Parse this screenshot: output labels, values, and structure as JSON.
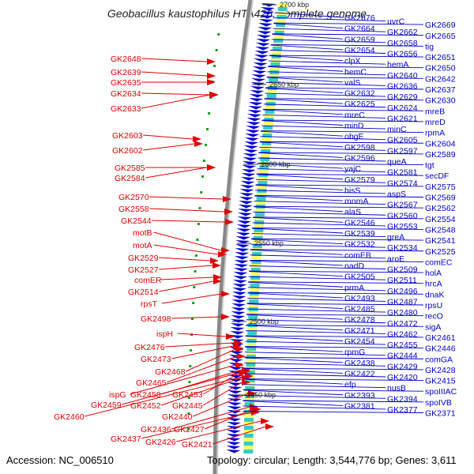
{
  "title": "Geobacillus kaustophilus HTA426, complete genome",
  "footer": {
    "accession": "Accession: NC_006510",
    "stats": "Topology: circular; Length: 3,544,776 bp; Genes: 3,611"
  },
  "colors": {
    "plus_strand": "#e00000",
    "minus_strand": "#0000cc",
    "backbone": "#888888",
    "mark": "#1a9e1a"
  },
  "scale_marks": [
    "2700 kbp",
    "2650 kbp",
    "2600 kbp",
    "2550 kbp",
    "2500 kbp",
    "2450 kbp"
  ],
  "left_labels": [
    "GK2648",
    "GK2639",
    "GK2635",
    "GK2634",
    "GK2633",
    "GK2603",
    "GK2602",
    "GK2585",
    "GK2584",
    "GK2570",
    "GK2558",
    "GK2544",
    "motB",
    "motA",
    "GK2529",
    "GK2527",
    "comER",
    "GK2514",
    "rpsT",
    "GK2498",
    "ispH",
    "GK2476",
    "GK2473",
    "GK2468",
    "GK2465",
    "ispG",
    "GK2458",
    "GK2453",
    "GK2459",
    "GK2452",
    "GK2445",
    "GK2460",
    "GK2440",
    "GK2436",
    "GK2427",
    "GK2437",
    "GK2426",
    "GK2421"
  ],
  "right_labels": [
    "GK2676",
    "uvrC",
    "GK2669",
    "GK2664",
    "GK2662",
    "GK2665",
    "GK2659",
    "GK2658",
    "tig",
    "GK2654",
    "GK2656",
    "GK2651",
    "clpX",
    "hemA",
    "GK2650",
    "hemC",
    "GK2640",
    "GK2642",
    "valS",
    "GK2636",
    "GK2637",
    "GK2632",
    "GK2629",
    "GK2630",
    "GK2625",
    "GK2624",
    "mreB",
    "mreC",
    "GK2621",
    "mreD",
    "minD",
    "minC",
    "rpmA",
    "obgE",
    "GK2605",
    "GK2604",
    "GK2598",
    "GK2597",
    "GK2589",
    "GK2596",
    "queA",
    "tgt",
    "yajC",
    "GK2581",
    "secDF",
    "GK2579",
    "GK2574",
    "GK2575",
    "hisS",
    "aspS",
    "GK2569",
    "mnmA",
    "GK2567",
    "GK2562",
    "alaS",
    "GK2560",
    "GK2554",
    "GK2546",
    "GK2553",
    "GK2548",
    "GK2539",
    "greA",
    "GK2541",
    "GK2532",
    "GK2534",
    "GK2525",
    "comEB",
    "aroE",
    "comEC",
    "nadD",
    "GK2509",
    "holA",
    "GK2505",
    "GK2511",
    "hrcA",
    "prmA",
    "GK2496",
    "dnaK",
    "GK2493",
    "GK2487",
    "rpsU",
    "GK2485",
    "GK2480",
    "recO",
    "GK2478",
    "GK2472",
    "sigA",
    "GK2471",
    "GK2462",
    "GK2461",
    "GK2454",
    "GK2455",
    "GK2446",
    "rpmG",
    "GK2444",
    "comGA",
    "GK2438",
    "GK2429",
    "GK2428",
    "GK2422",
    "GK2420",
    "GK2415",
    "efp",
    "nusB",
    "spoIIIAC",
    "GK2393",
    "GK2394",
    "spoIVB",
    "GK2381",
    "GK2377",
    "GK2371"
  ]
}
